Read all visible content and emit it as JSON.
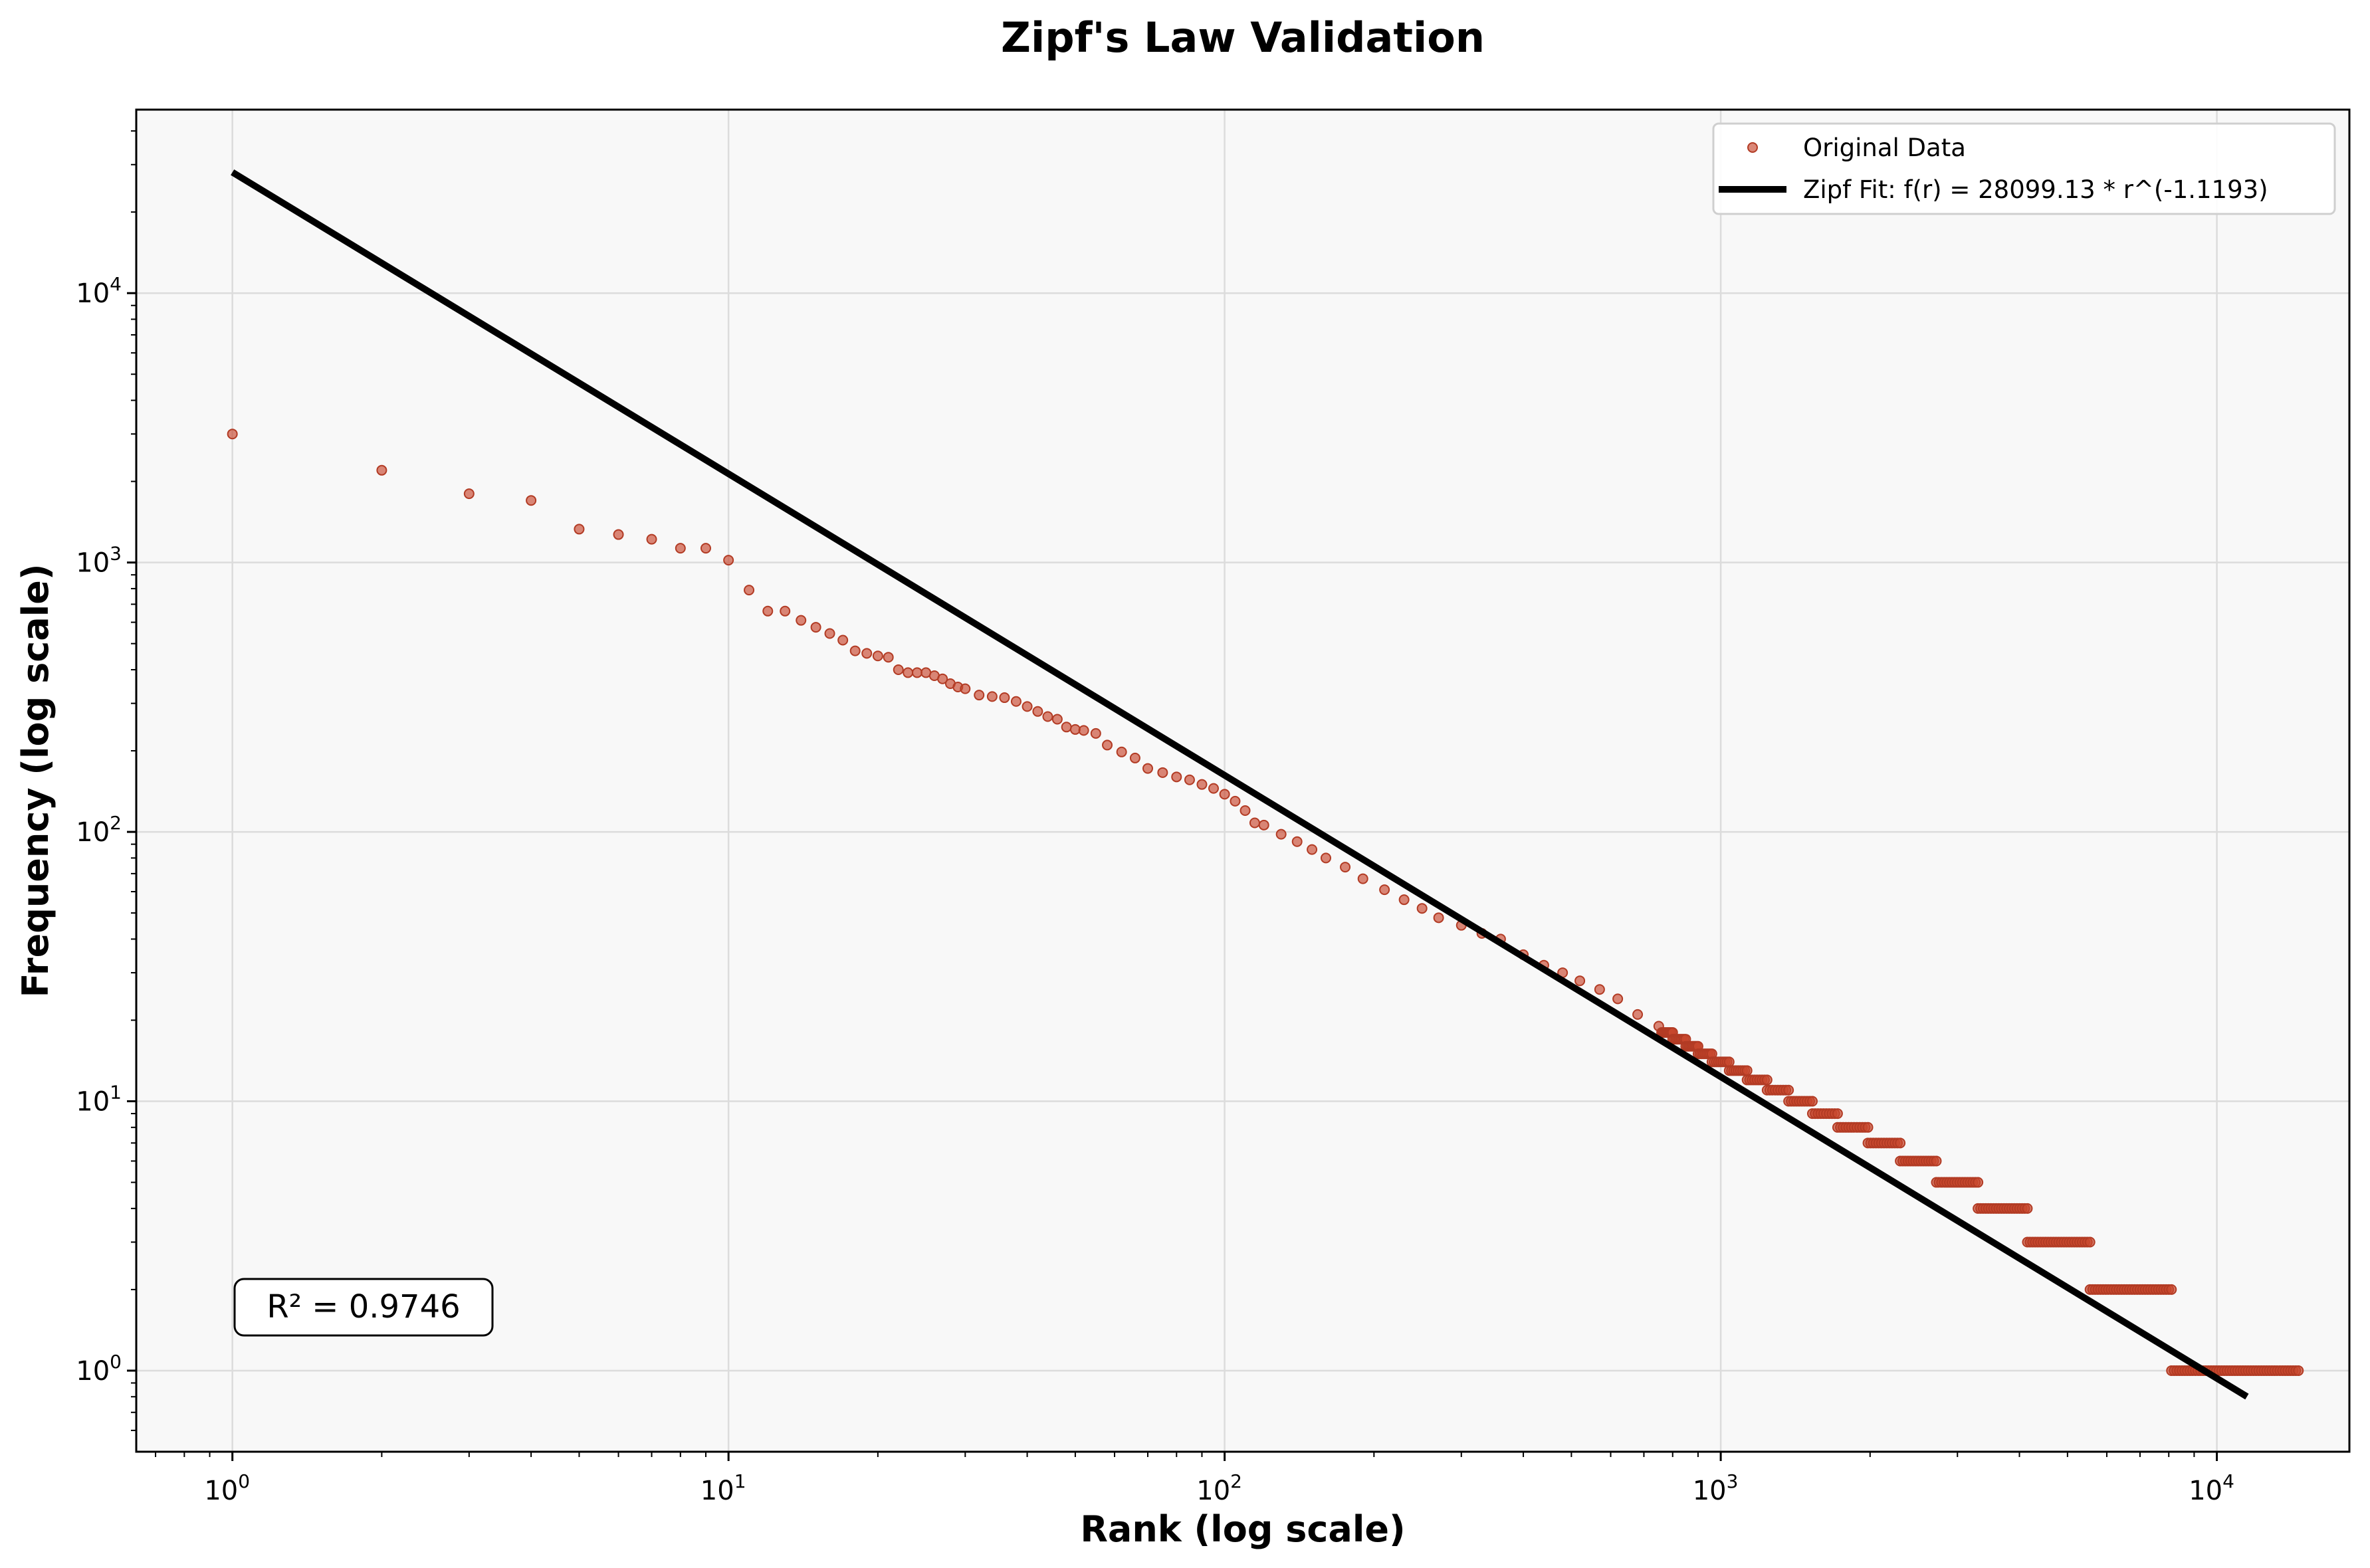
{
  "chart_data": {
    "type": "scatter",
    "title": "Zipf's Law Validation",
    "xlabel": "Rank (log scale)",
    "ylabel": "Frequency (log scale)",
    "xscale": "log",
    "yscale": "log",
    "xlim": [
      0.64,
      18500
    ],
    "ylim": [
      0.5,
      48000
    ],
    "grid": true,
    "legend_position": "upper-right",
    "x_ticks": [
      {
        "base": "10",
        "exp": "0",
        "value": 1
      },
      {
        "base": "10",
        "exp": "1",
        "value": 10
      },
      {
        "base": "10",
        "exp": "2",
        "value": 100
      },
      {
        "base": "10",
        "exp": "3",
        "value": 1000
      },
      {
        "base": "10",
        "exp": "4",
        "value": 10000
      }
    ],
    "y_ticks": [
      {
        "base": "10",
        "exp": "0",
        "value": 1
      },
      {
        "base": "10",
        "exp": "1",
        "value": 10
      },
      {
        "base": "10",
        "exp": "2",
        "value": 100
      },
      {
        "base": "10",
        "exp": "3",
        "value": 1000
      },
      {
        "base": "10",
        "exp": "4",
        "value": 10000
      }
    ],
    "series": [
      {
        "name": "Original Data",
        "kind": "scatter",
        "color": "#c8472e",
        "note": "head points listed, tail summarized by frequency-step plateaus",
        "points": [
          [
            1,
            3000
          ],
          [
            2,
            2200
          ],
          [
            3,
            1800
          ],
          [
            4,
            1700
          ],
          [
            5,
            1330
          ],
          [
            6,
            1270
          ],
          [
            7,
            1220
          ],
          [
            8,
            1130
          ],
          [
            9,
            1130
          ],
          [
            10,
            1020
          ],
          [
            11,
            790
          ],
          [
            12,
            660
          ],
          [
            13,
            660
          ],
          [
            14,
            610
          ],
          [
            15,
            575
          ],
          [
            16,
            545
          ],
          [
            17,
            515
          ],
          [
            18,
            470
          ],
          [
            19,
            460
          ],
          [
            20,
            450
          ],
          [
            21,
            445
          ],
          [
            22,
            400
          ],
          [
            23,
            390
          ],
          [
            24,
            390
          ],
          [
            25,
            390
          ],
          [
            26,
            380
          ],
          [
            27,
            370
          ],
          [
            28,
            355
          ],
          [
            29,
            345
          ],
          [
            30,
            340
          ],
          [
            32,
            322
          ],
          [
            34,
            318
          ],
          [
            36,
            315
          ],
          [
            38,
            305
          ],
          [
            40,
            292
          ],
          [
            42,
            280
          ],
          [
            44,
            268
          ],
          [
            46,
            262
          ],
          [
            48,
            245
          ],
          [
            50,
            240
          ],
          [
            52,
            238
          ],
          [
            55,
            232
          ],
          [
            58,
            210
          ],
          [
            62,
            198
          ],
          [
            66,
            188
          ],
          [
            70,
            172
          ],
          [
            75,
            166
          ],
          [
            80,
            160
          ],
          [
            85,
            156
          ],
          [
            90,
            150
          ],
          [
            95,
            145
          ],
          [
            100,
            138
          ],
          [
            105,
            130
          ],
          [
            110,
            120
          ],
          [
            115,
            108
          ],
          [
            120,
            106
          ],
          [
            130,
            98
          ],
          [
            140,
            92
          ],
          [
            150,
            86
          ],
          [
            160,
            80
          ],
          [
            175,
            74
          ],
          [
            190,
            67
          ],
          [
            210,
            61
          ],
          [
            230,
            56
          ],
          [
            250,
            52
          ],
          [
            270,
            48
          ],
          [
            300,
            45
          ],
          [
            330,
            42
          ],
          [
            360,
            40
          ],
          [
            400,
            35
          ],
          [
            440,
            32
          ],
          [
            480,
            30
          ],
          [
            520,
            28
          ],
          [
            570,
            26
          ],
          [
            620,
            24
          ],
          [
            680,
            21
          ],
          [
            750,
            19
          ]
        ],
        "plateaus": [
          {
            "freq": 18,
            "x_start": 760,
            "x_end": 800
          },
          {
            "freq": 17,
            "x_start": 800,
            "x_end": 850
          },
          {
            "freq": 16,
            "x_start": 850,
            "x_end": 900
          },
          {
            "freq": 15,
            "x_start": 900,
            "x_end": 960
          },
          {
            "freq": 14,
            "x_start": 960,
            "x_end": 1040
          },
          {
            "freq": 13,
            "x_start": 1040,
            "x_end": 1130
          },
          {
            "freq": 12,
            "x_start": 1130,
            "x_end": 1240
          },
          {
            "freq": 11,
            "x_start": 1240,
            "x_end": 1370
          },
          {
            "freq": 10,
            "x_start": 1370,
            "x_end": 1530
          },
          {
            "freq": 9,
            "x_start": 1530,
            "x_end": 1720
          },
          {
            "freq": 8,
            "x_start": 1720,
            "x_end": 1980
          },
          {
            "freq": 7,
            "x_start": 1980,
            "x_end": 2300
          },
          {
            "freq": 6,
            "x_start": 2300,
            "x_end": 2720
          },
          {
            "freq": 5,
            "x_start": 2720,
            "x_end": 3300
          },
          {
            "freq": 4,
            "x_start": 3300,
            "x_end": 4150
          },
          {
            "freq": 3,
            "x_start": 4150,
            "x_end": 5550
          },
          {
            "freq": 2,
            "x_start": 5550,
            "x_end": 8100
          },
          {
            "freq": 1,
            "x_start": 8100,
            "x_end": 14600
          }
        ]
      },
      {
        "name": "Zipf Fit: f(r) = 28099.13 * r^(-1.1193)",
        "kind": "line",
        "color": "#000000",
        "a": 28099.13,
        "b": -1.1193,
        "x_range": [
          1,
          11500
        ]
      }
    ],
    "annotations": [
      {
        "text": "R² = 0.9746",
        "position": "lower-left"
      }
    ]
  }
}
